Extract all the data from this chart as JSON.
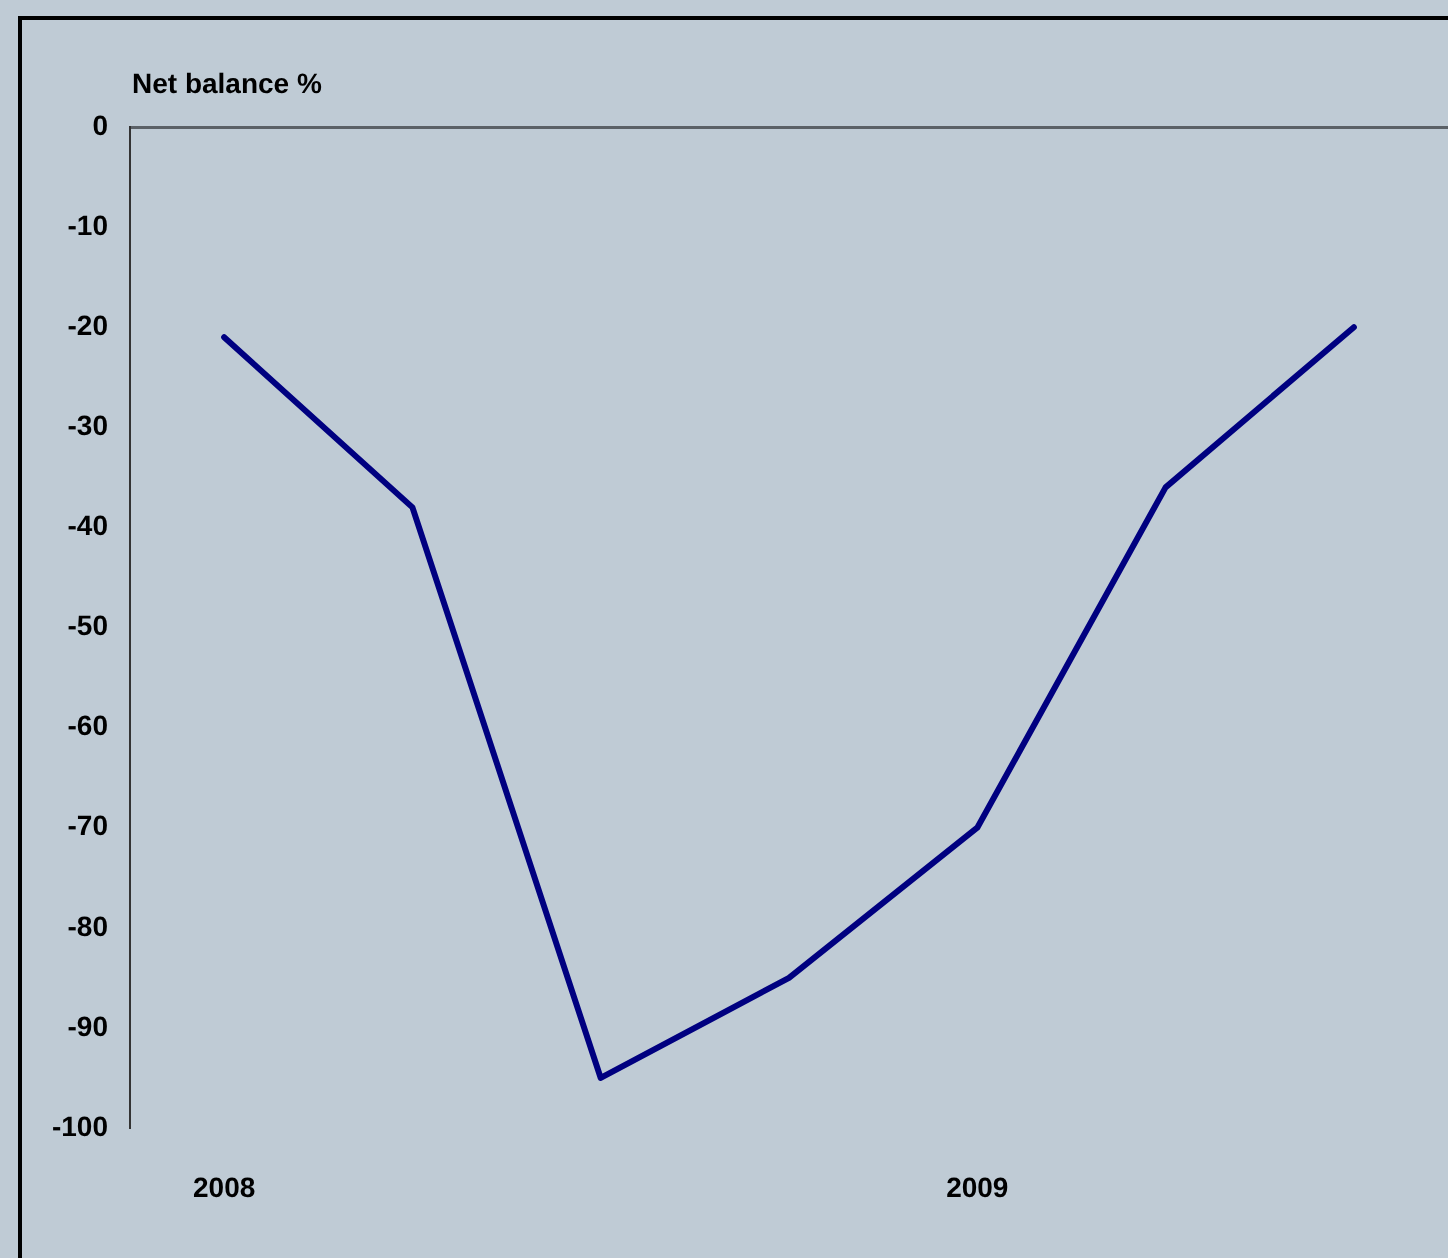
{
  "chart_data": {
    "type": "line",
    "ylabel": "Net balance %",
    "categories": [
      "2008",
      null,
      null,
      null,
      "2009",
      null,
      null
    ],
    "values": [
      -21,
      -38,
      -95,
      -85,
      -70,
      -36,
      -20
    ],
    "color": "#000080",
    "ylim": [
      -100,
      0
    ],
    "yticks": [
      -100,
      -90,
      -80,
      -70,
      -60,
      -50,
      -40,
      -30,
      -20,
      -10,
      0
    ],
    "grid": false,
    "legend": false
  }
}
